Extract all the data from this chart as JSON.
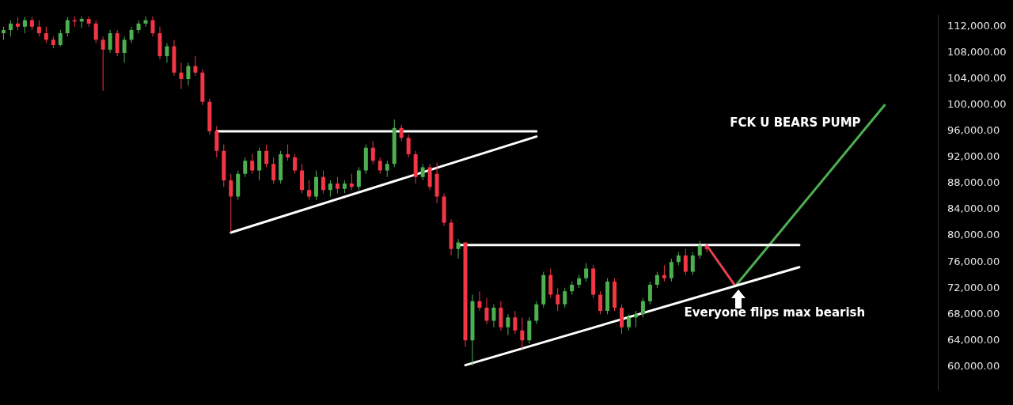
{
  "chart_data": {
    "type": "candlestick",
    "tick_labels": "y",
    "annotations": [
      "FCK U BEARS PUMP",
      "Everyone flips max bearish"
    ],
    "ylim": [
      56500,
      113700
    ],
    "yticks": [
      {
        "value": 60000,
        "label": "60,000.00"
      },
      {
        "value": 64000,
        "label": "64,000.00"
      },
      {
        "value": 68000,
        "label": "68,000.00"
      },
      {
        "value": 72000,
        "label": "72,000.00"
      },
      {
        "value": 76000,
        "label": "76,000.00"
      },
      {
        "value": 80000,
        "label": "80,000.00"
      },
      {
        "value": 84000,
        "label": "84,000.00"
      },
      {
        "value": 88000,
        "label": "88,000.00"
      },
      {
        "value": 92000,
        "label": "92,000.00"
      },
      {
        "value": 96000,
        "label": "96,000.00"
      },
      {
        "value": 100000,
        "label": "100,000.00"
      },
      {
        "value": 104000,
        "label": "104,000.00"
      },
      {
        "value": 108000,
        "label": "108,000.00"
      },
      {
        "value": 112000,
        "label": "112,000.00"
      }
    ],
    "categories": [
      null,
      null,
      null,
      null,
      null,
      null,
      null,
      null,
      null,
      null,
      null,
      null,
      null,
      null,
      null,
      null,
      null,
      null,
      null,
      null,
      null,
      null,
      null,
      null,
      null,
      null,
      null,
      null,
      null,
      null,
      null,
      null,
      null,
      null,
      null,
      null,
      null,
      null,
      null,
      null,
      null,
      null,
      null,
      null,
      null,
      null,
      null,
      null,
      null,
      null,
      null,
      null,
      null,
      null,
      null,
      null,
      null,
      null,
      null,
      null,
      null,
      null,
      null,
      null,
      null,
      null,
      null,
      null,
      null,
      null,
      null,
      null,
      null,
      null,
      null,
      null,
      null,
      null,
      null,
      null,
      null,
      null,
      null,
      null,
      null,
      null,
      null,
      null,
      null,
      null,
      null,
      null,
      null,
      null,
      null,
      null,
      null,
      null,
      null,
      null,
      null,
      null,
      null,
      null,
      null,
      null,
      null,
      null,
      null,
      null,
      null,
      null,
      null,
      null,
      null,
      null,
      null,
      null,
      null,
      null,
      null,
      null,
      null,
      null,
      null,
      null,
      null,
      null,
      null,
      null,
      null,
      null
    ],
    "ohlc": [
      [
        111000,
        112000,
        110000,
        111500
      ],
      [
        111500,
        113000,
        110500,
        112500
      ],
      [
        112500,
        113500,
        111500,
        112000
      ],
      [
        112000,
        113500,
        111000,
        113000
      ],
      [
        113000,
        113500,
        111500,
        112000
      ],
      [
        112000,
        113000,
        110500,
        111000
      ],
      [
        111000,
        112000,
        109500,
        110000
      ],
      [
        110000,
        110500,
        108700,
        109200
      ],
      [
        109200,
        111500,
        109000,
        111000
      ],
      [
        111000,
        113500,
        110500,
        113000
      ],
      [
        113000,
        113600,
        112000,
        112800
      ],
      [
        112800,
        113600,
        111800,
        113200
      ],
      [
        113200,
        113600,
        112000,
        112500
      ],
      [
        112500,
        113000,
        109500,
        110000
      ],
      [
        110000,
        110500,
        102200,
        108500
      ],
      [
        108500,
        111500,
        108000,
        111000
      ],
      [
        111000,
        111500,
        107500,
        108000
      ],
      [
        108000,
        110500,
        106500,
        110000
      ],
      [
        110000,
        112000,
        109500,
        111500
      ],
      [
        111500,
        113000,
        111000,
        112500
      ],
      [
        112500,
        113600,
        112000,
        113000
      ],
      [
        113000,
        113600,
        110500,
        111000
      ],
      [
        111000,
        112000,
        107000,
        107500
      ],
      [
        107500,
        109500,
        106500,
        109000
      ],
      [
        109000,
        110000,
        104500,
        105000
      ],
      [
        105000,
        106500,
        102500,
        104000
      ],
      [
        104000,
        106500,
        103000,
        106000
      ],
      [
        106000,
        107500,
        104500,
        105000
      ],
      [
        105000,
        105500,
        100000,
        100500
      ],
      [
        100500,
        101000,
        95500,
        96000
      ],
      [
        96000,
        96800,
        92000,
        93000
      ],
      [
        93000,
        94000,
        87500,
        88500
      ],
      [
        88500,
        89500,
        80500,
        86000
      ],
      [
        86000,
        90000,
        85500,
        89500
      ],
      [
        89500,
        92000,
        89000,
        91500
      ],
      [
        91500,
        92500,
        89500,
        90000
      ],
      [
        90000,
        93500,
        88500,
        93000
      ],
      [
        93000,
        94000,
        90500,
        91000
      ],
      [
        91000,
        92000,
        88000,
        88500
      ],
      [
        88500,
        93000,
        88000,
        92500
      ],
      [
        92500,
        94000,
        91500,
        92000
      ],
      [
        92000,
        92500,
        89500,
        90000
      ],
      [
        90000,
        91000,
        86500,
        87000
      ],
      [
        87000,
        88500,
        85500,
        86000
      ],
      [
        86000,
        90000,
        85500,
        89000
      ],
      [
        89000,
        90000,
        86500,
        87000
      ],
      [
        87000,
        88500,
        86000,
        88000
      ],
      [
        88000,
        89000,
        86500,
        87200
      ],
      [
        87200,
        88500,
        86500,
        88000
      ],
      [
        88000,
        89500,
        87000,
        87500
      ],
      [
        87500,
        90500,
        87000,
        90000
      ],
      [
        90000,
        94000,
        89500,
        93500
      ],
      [
        93500,
        94500,
        91000,
        91500
      ],
      [
        91500,
        92000,
        89500,
        90000
      ],
      [
        90000,
        91500,
        89000,
        91000
      ],
      [
        91000,
        97800,
        90500,
        96500
      ],
      [
        96500,
        97000,
        94500,
        95000
      ],
      [
        95000,
        95500,
        92000,
        92500
      ],
      [
        92500,
        93000,
        88000,
        89000
      ],
      [
        89000,
        91000,
        88500,
        90500
      ],
      [
        90500,
        91000,
        87000,
        87500
      ],
      [
        89500,
        91200,
        85000,
        86000
      ],
      [
        86000,
        86500,
        81500,
        82000
      ],
      [
        82000,
        82500,
        77000,
        78000
      ],
      [
        78000,
        79500,
        76500,
        79000
      ],
      [
        79000,
        79000,
        63000,
        64000
      ],
      [
        64000,
        71000,
        60100,
        70000
      ],
      [
        70000,
        71500,
        68500,
        69000
      ],
      [
        69000,
        70500,
        66500,
        67000
      ],
      [
        67000,
        69500,
        66000,
        69000
      ],
      [
        69000,
        70000,
        65500,
        66000
      ],
      [
        66000,
        68000,
        64800,
        67500
      ],
      [
        67500,
        68500,
        65000,
        65500
      ],
      [
        65500,
        67500,
        62700,
        64000
      ],
      [
        64000,
        67500,
        63500,
        67000
      ],
      [
        67000,
        70000,
        66500,
        69500
      ],
      [
        69500,
        74500,
        69000,
        74000
      ],
      [
        74000,
        75000,
        70500,
        71000
      ],
      [
        71000,
        72000,
        68500,
        69500
      ],
      [
        69500,
        72000,
        69000,
        71500
      ],
      [
        71500,
        73000,
        71000,
        72500
      ],
      [
        72500,
        74000,
        72000,
        73500
      ],
      [
        73500,
        75800,
        73000,
        75000
      ],
      [
        75000,
        75500,
        70500,
        71000
      ],
      [
        71000,
        71500,
        68000,
        68500
      ],
      [
        68500,
        73500,
        68000,
        73000
      ],
      [
        73000,
        73500,
        68500,
        69000
      ],
      [
        69000,
        69500,
        65000,
        66000
      ],
      [
        66000,
        68000,
        65500,
        67500
      ],
      [
        67500,
        68500,
        66000,
        68000
      ],
      [
        68000,
        70500,
        67500,
        70000
      ],
      [
        70000,
        73000,
        69500,
        72500
      ],
      [
        72500,
        74500,
        72000,
        74000
      ],
      [
        74000,
        75500,
        73000,
        73500
      ],
      [
        73500,
        76500,
        73000,
        76000
      ],
      [
        76000,
        77500,
        75500,
        77000
      ],
      [
        77000,
        78000,
        74000,
        74500
      ],
      [
        74500,
        77500,
        74000,
        77000
      ],
      [
        77000,
        79200,
        76500,
        78500
      ],
      [
        78500,
        78800,
        77500,
        78000
      ],
      null,
      null,
      null,
      null,
      null,
      null,
      null,
      null,
      null,
      null,
      null,
      null,
      null,
      null,
      null,
      null,
      null,
      null,
      null,
      null,
      null,
      null,
      null,
      null,
      null,
      null,
      null,
      null,
      null,
      null,
      null,
      null
    ],
    "colors": [
      "#4caf50",
      "#4caf50",
      "#f23645",
      "#4caf50",
      "#f23645",
      "#f23645",
      "#f23645",
      "#f23645",
      "#4caf50",
      "#4caf50",
      "#f23645",
      "#4caf50",
      "#f23645",
      "#f23645",
      "#f23645",
      "#4caf50",
      "#f23645",
      "#4caf50",
      "#4caf50",
      "#4caf50",
      "#4caf50",
      "#f23645",
      "#f23645",
      "#4caf50",
      "#f23645",
      "#f23645",
      "#4caf50",
      "#f23645",
      "#f23645",
      "#f23645",
      "#f23645",
      "#f23645",
      "#f23645",
      "#4caf50",
      "#4caf50",
      "#f23645",
      "#4caf50",
      "#f23645",
      "#f23645",
      "#4caf50",
      "#f23645",
      "#f23645",
      "#f23645",
      "#f23645",
      "#4caf50",
      "#f23645",
      "#4caf50",
      "#f23645",
      "#4caf50",
      "#f23645",
      "#4caf50",
      "#4caf50",
      "#f23645",
      "#f23645",
      "#4caf50",
      "#4caf50",
      "#f23645",
      "#f23645",
      "#f23645",
      "#4caf50",
      "#f23645",
      "#f23645",
      "#f23645",
      "#f23645",
      "#4caf50",
      "#f23645",
      "#4caf50",
      "#f23645",
      "#f23645",
      "#4caf50",
      "#f23645",
      "#4caf50",
      "#f23645",
      "#f23645",
      "#4caf50",
      "#4caf50",
      "#4caf50",
      "#f23645",
      "#f23645",
      "#4caf50",
      "#4caf50",
      "#4caf50",
      "#4caf50",
      "#f23645",
      "#f23645",
      "#4caf50",
      "#f23645",
      "#f23645",
      "#4caf50",
      "#4caf50",
      "#4caf50",
      "#4caf50",
      "#4caf50",
      "#f23645",
      "#4caf50",
      "#4caf50",
      "#f23645",
      "#4caf50",
      "#4caf50",
      "#f23645",
      null,
      null,
      null,
      null,
      null,
      null,
      null,
      null,
      null,
      null,
      null,
      null,
      null,
      null,
      null,
      null,
      null,
      null,
      null,
      null,
      null,
      null,
      null,
      null,
      null,
      null,
      null,
      null,
      null,
      null,
      null,
      null
    ],
    "series": [
      {
        "type": "line",
        "color": "#ffffff",
        "values": [
          null,
          null,
          null,
          null,
          null,
          null,
          null,
          null,
          null,
          null,
          null,
          null,
          null,
          null,
          null,
          null,
          null,
          null,
          null,
          null,
          null,
          null,
          null,
          null,
          null,
          null,
          null,
          null,
          null,
          null,
          96000,
          null,
          null,
          null,
          null,
          null,
          null,
          null,
          null,
          null,
          null,
          null,
          null,
          null,
          null,
          null,
          null,
          null,
          null,
          null,
          null,
          null,
          null,
          null,
          null,
          null,
          null,
          null,
          null,
          null,
          null,
          null,
          null,
          null,
          null,
          null,
          null,
          null,
          null,
          null,
          null,
          null,
          null,
          null,
          null,
          96000,
          null,
          null,
          null,
          null,
          null,
          null,
          null,
          null,
          null,
          null,
          null,
          null,
          null,
          null,
          null,
          null,
          null,
          null,
          null,
          null,
          null,
          null,
          null,
          null,
          null,
          null,
          null,
          null,
          null,
          null,
          null,
          null,
          null,
          null,
          null,
          null,
          null,
          null,
          null,
          null,
          null,
          null,
          null,
          null,
          null,
          null,
          null,
          null,
          null,
          null,
          null,
          null,
          null,
          null,
          null,
          null
        ]
      },
      {
        "type": "line",
        "color": "#ffffff",
        "values": [
          null,
          null,
          null,
          null,
          null,
          null,
          null,
          null,
          null,
          null,
          null,
          null,
          null,
          null,
          null,
          null,
          null,
          null,
          null,
          null,
          null,
          null,
          null,
          null,
          null,
          null,
          null,
          null,
          null,
          null,
          null,
          null,
          80500,
          null,
          null,
          null,
          null,
          null,
          null,
          null,
          null,
          null,
          null,
          null,
          null,
          null,
          null,
          null,
          null,
          null,
          null,
          null,
          null,
          null,
          null,
          null,
          null,
          null,
          null,
          null,
          null,
          null,
          null,
          null,
          null,
          null,
          null,
          null,
          null,
          null,
          null,
          null,
          null,
          null,
          null,
          95200,
          null,
          null,
          null,
          null,
          null,
          null,
          null,
          null,
          null,
          null,
          null,
          null,
          null,
          null,
          null,
          null,
          null,
          null,
          null,
          null,
          null,
          null,
          null,
          null,
          null,
          null,
          null,
          null,
          null,
          null,
          null,
          null,
          null,
          null,
          null,
          null,
          null,
          null,
          null,
          null,
          null,
          null,
          null,
          null,
          null,
          null,
          null,
          null,
          null,
          null,
          null,
          null,
          null,
          null,
          null,
          null
        ]
      },
      {
        "type": "line",
        "color": "#ffffff",
        "values": [
          null,
          null,
          null,
          null,
          null,
          null,
          null,
          null,
          null,
          null,
          null,
          null,
          null,
          null,
          null,
          null,
          null,
          null,
          null,
          null,
          null,
          null,
          null,
          null,
          null,
          null,
          null,
          null,
          null,
          null,
          null,
          null,
          null,
          null,
          null,
          null,
          null,
          null,
          null,
          null,
          null,
          null,
          null,
          null,
          null,
          null,
          null,
          null,
          null,
          null,
          null,
          null,
          null,
          null,
          null,
          null,
          null,
          null,
          null,
          null,
          null,
          null,
          null,
          null,
          78600,
          null,
          null,
          null,
          null,
          null,
          null,
          null,
          null,
          null,
          null,
          null,
          null,
          null,
          null,
          null,
          null,
          null,
          null,
          null,
          null,
          null,
          null,
          null,
          null,
          null,
          null,
          null,
          null,
          null,
          null,
          null,
          null,
          null,
          null,
          null,
          null,
          null,
          null,
          null,
          null,
          null,
          null,
          null,
          null,
          null,
          null,
          null,
          78600,
          null,
          null,
          null,
          null,
          null,
          null,
          null,
          null,
          null,
          null,
          null,
          null,
          null,
          null,
          null,
          null,
          null,
          null,
          null
        ]
      },
      {
        "type": "line",
        "color": "#ffffff",
        "values": [
          null,
          null,
          null,
          null,
          null,
          null,
          null,
          null,
          null,
          null,
          null,
          null,
          null,
          null,
          null,
          null,
          null,
          null,
          null,
          null,
          null,
          null,
          null,
          null,
          null,
          null,
          null,
          null,
          null,
          null,
          null,
          null,
          null,
          null,
          null,
          null,
          null,
          null,
          null,
          null,
          null,
          null,
          null,
          null,
          null,
          null,
          null,
          null,
          null,
          null,
          null,
          null,
          null,
          null,
          null,
          null,
          null,
          null,
          null,
          null,
          null,
          null,
          null,
          null,
          null,
          60200,
          null,
          null,
          null,
          null,
          null,
          null,
          null,
          null,
          null,
          null,
          null,
          null,
          null,
          null,
          null,
          null,
          null,
          null,
          null,
          null,
          null,
          null,
          null,
          null,
          null,
          null,
          null,
          null,
          null,
          null,
          null,
          null,
          null,
          null,
          null,
          null,
          null,
          null,
          null,
          null,
          null,
          null,
          null,
          null,
          null,
          null,
          75200,
          null,
          null,
          null,
          null,
          null,
          null,
          null,
          null,
          null,
          null,
          null,
          null,
          null,
          null,
          null,
          null,
          null,
          null,
          null
        ]
      },
      {
        "type": "line",
        "color": "#e8404f",
        "values": [
          null,
          null,
          null,
          null,
          null,
          null,
          null,
          null,
          null,
          null,
          null,
          null,
          null,
          null,
          null,
          null,
          null,
          null,
          null,
          null,
          null,
          null,
          null,
          null,
          null,
          null,
          null,
          null,
          null,
          null,
          null,
          null,
          null,
          null,
          null,
          null,
          null,
          null,
          null,
          null,
          null,
          null,
          null,
          null,
          null,
          null,
          null,
          null,
          null,
          null,
          null,
          null,
          null,
          null,
          null,
          null,
          null,
          null,
          null,
          null,
          null,
          null,
          null,
          null,
          null,
          null,
          null,
          null,
          null,
          null,
          null,
          null,
          null,
          null,
          null,
          null,
          null,
          null,
          null,
          null,
          null,
          null,
          null,
          null,
          null,
          null,
          null,
          null,
          null,
          null,
          null,
          null,
          null,
          null,
          null,
          null,
          null,
          null,
          null,
          78500,
          null,
          null,
          null,
          72300,
          null,
          null,
          null,
          null,
          null,
          null,
          null,
          null,
          null,
          null,
          null,
          null,
          null,
          null,
          null,
          null,
          null,
          null,
          null,
          null,
          null,
          null,
          null,
          null,
          null,
          null,
          null,
          null
        ]
      },
      {
        "type": "line",
        "color": "#4caf50",
        "values": [
          null,
          null,
          null,
          null,
          null,
          null,
          null,
          null,
          null,
          null,
          null,
          null,
          null,
          null,
          null,
          null,
          null,
          null,
          null,
          null,
          null,
          null,
          null,
          null,
          null,
          null,
          null,
          null,
          null,
          null,
          null,
          null,
          null,
          null,
          null,
          null,
          null,
          null,
          null,
          null,
          null,
          null,
          null,
          null,
          null,
          null,
          null,
          null,
          null,
          null,
          null,
          null,
          null,
          null,
          null,
          null,
          null,
          null,
          null,
          null,
          null,
          null,
          null,
          null,
          null,
          null,
          null,
          null,
          null,
          null,
          null,
          null,
          null,
          null,
          null,
          null,
          null,
          null,
          null,
          null,
          null,
          null,
          null,
          null,
          null,
          null,
          null,
          null,
          null,
          null,
          null,
          null,
          null,
          null,
          null,
          null,
          null,
          null,
          null,
          null,
          null,
          null,
          null,
          72300,
          null,
          null,
          null,
          null,
          null,
          null,
          null,
          null,
          null,
          null,
          null,
          null,
          null,
          null,
          null,
          null,
          null,
          null,
          null,
          null,
          100000,
          null,
          null,
          null,
          null,
          null,
          null,
          null
        ]
      }
    ]
  }
}
